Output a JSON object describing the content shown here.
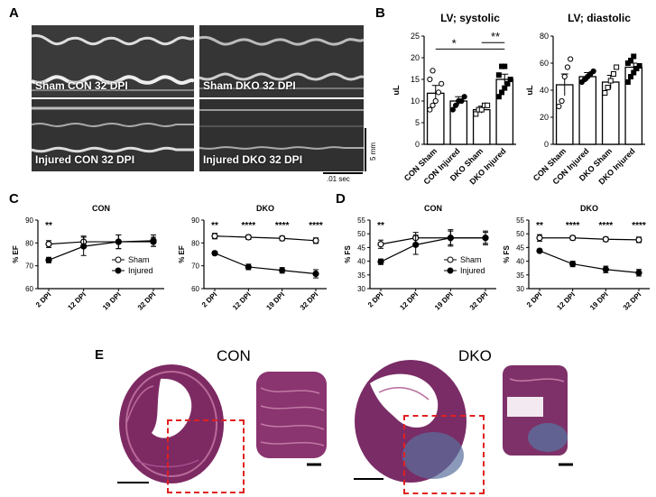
{
  "panels": {
    "a": "A",
    "b": "B",
    "c": "C",
    "d": "D",
    "e": "E"
  },
  "echo": {
    "images": [
      {
        "label": "Sham CON 32 DPI"
      },
      {
        "label": "Sham DKO 32 DPI"
      },
      {
        "label": "Injured CON 32 DPI"
      },
      {
        "label": "Injured DKO 32 DPI"
      }
    ],
    "scale_y": "5 mm",
    "scale_x": ".01 sec"
  },
  "chart_data": [
    {
      "id": "B-systolic",
      "type": "bar",
      "title": "LV; systolic",
      "ylabel": "uL",
      "ylim": [
        0,
        25
      ],
      "yticks": [
        0,
        5,
        10,
        15,
        20,
        25
      ],
      "categories": [
        "CON Sham",
        "CON Injured",
        "DKO Sham",
        "DKO Injured"
      ],
      "values": [
        11.8,
        10.0,
        8.0,
        15.0
      ],
      "errors": [
        1.8,
        1.0,
        0.8,
        1.2
      ],
      "points": [
        [
          8,
          9,
          10,
          12,
          14,
          15,
          17
        ],
        [
          8,
          9,
          10,
          10,
          11
        ],
        [
          7,
          8,
          8,
          9,
          9
        ],
        [
          11,
          12,
          13,
          14,
          15,
          16,
          18,
          18
        ]
      ],
      "annotations": [
        "*",
        "**"
      ]
    },
    {
      "id": "B-diastolic",
      "type": "bar",
      "title": "LV; diastolic",
      "ylabel": "uL",
      "ylim": [
        0,
        80
      ],
      "yticks": [
        0,
        20,
        40,
        60,
        80
      ],
      "categories": [
        "CON Sham",
        "CON Injured",
        "DKO Sham",
        "DKO Injured"
      ],
      "values": [
        44,
        50,
        46,
        57
      ],
      "errors": [
        8,
        3,
        5,
        3
      ],
      "points": [
        [
          28,
          32,
          50,
          57,
          63
        ],
        [
          46,
          48,
          50,
          52,
          54
        ],
        [
          38,
          42,
          47,
          52,
          57
        ],
        [
          46,
          50,
          53,
          56,
          58,
          60,
          62,
          65
        ]
      ],
      "annotations": []
    },
    {
      "id": "C-CON",
      "type": "line",
      "title": "CON",
      "ylabel": "% EF",
      "ylim": [
        60,
        90
      ],
      "yticks": [
        60,
        70,
        80,
        90
      ],
      "ytick_labels": [
        "60",
        "70",
        "80",
        "90"
      ],
      "x": [
        "2 DPI",
        "12 DPI",
        "19 DPI",
        "32 DPI"
      ],
      "series": [
        {
          "name": "Sham",
          "values": [
            79.5,
            80.5,
            80.5,
            81.0
          ],
          "errors": [
            1.5,
            2.5,
            3.0,
            2.5
          ]
        },
        {
          "name": "Injured",
          "values": [
            72.5,
            78.5,
            80.5,
            80.5
          ],
          "errors": [
            1.2,
            4.0,
            3.0,
            2.0
          ]
        }
      ],
      "annotations": [
        "**",
        "",
        "",
        ""
      ],
      "legend": "bottom-right"
    },
    {
      "id": "C-DKO",
      "type": "line",
      "title": "DKO",
      "ylabel": "% EF",
      "ylim": [
        60,
        90
      ],
      "yticks": [
        60,
        70,
        80,
        90
      ],
      "ytick_labels": [
        "60",
        "70",
        "80",
        "90"
      ],
      "x": [
        "2 DPI",
        "12 DPI",
        "19 DPI",
        "32 DPI"
      ],
      "series": [
        {
          "name": "Sham",
          "values": [
            83.0,
            82.5,
            82.0,
            81.0
          ],
          "errors": [
            1.2,
            1.0,
            1.0,
            1.2
          ]
        },
        {
          "name": "Injured",
          "values": [
            75.5,
            69.5,
            68.0,
            66.5
          ],
          "errors": [
            0.8,
            1.2,
            1.2,
            1.8
          ]
        }
      ],
      "annotations": [
        "**",
        "****",
        "****",
        "****"
      ]
    },
    {
      "id": "D-CON",
      "type": "line",
      "title": "CON",
      "ylabel": "% FS",
      "ylim": [
        30,
        55
      ],
      "yticks": [
        30,
        35,
        40,
        45,
        50,
        55
      ],
      "ytick_labels": [
        "30",
        "35",
        "40",
        "45",
        "50",
        "55"
      ],
      "x": [
        "2 DPI",
        "12 DPI",
        "19 DPI",
        "32 DPI"
      ],
      "series": [
        {
          "name": "Sham",
          "values": [
            46.2,
            48.5,
            48.5,
            48.5
          ],
          "errors": [
            1.5,
            2.0,
            2.5,
            2.0
          ]
        },
        {
          "name": "Injured",
          "values": [
            39.8,
            46.0,
            48.5,
            48.5
          ],
          "errors": [
            1.0,
            3.5,
            3.0,
            2.5
          ]
        }
      ],
      "annotations": [
        "**",
        "",
        "",
        ""
      ],
      "legend": "bottom-right"
    },
    {
      "id": "D-DKO",
      "type": "line",
      "title": "DKO",
      "ylabel": "% FS",
      "ylim": [
        30,
        55
      ],
      "yticks": [
        30,
        35,
        40,
        45,
        50,
        55
      ],
      "ytick_labels": [
        "30",
        "35",
        "40",
        "45",
        "50",
        "55"
      ],
      "x": [
        "2 DPI",
        "12 DPI",
        "19 DPI",
        "32 DPI"
      ],
      "series": [
        {
          "name": "Sham",
          "values": [
            48.5,
            48.5,
            48.0,
            47.8
          ],
          "errors": [
            1.2,
            0.8,
            0.8,
            1.0
          ]
        },
        {
          "name": "Injured",
          "values": [
            43.8,
            39.0,
            37.0,
            35.8
          ],
          "errors": [
            0.6,
            1.0,
            1.2,
            1.2
          ]
        }
      ],
      "annotations": [
        "**",
        "****",
        "****",
        "****"
      ]
    }
  ],
  "histology": {
    "con_label": "CON",
    "dko_label": "DKO"
  },
  "colors": {
    "tissue": "#7d2a63",
    "tissue_light": "#b86a9a",
    "inset_box": "#e02020",
    "dko_blue": "#5a6f9c"
  }
}
